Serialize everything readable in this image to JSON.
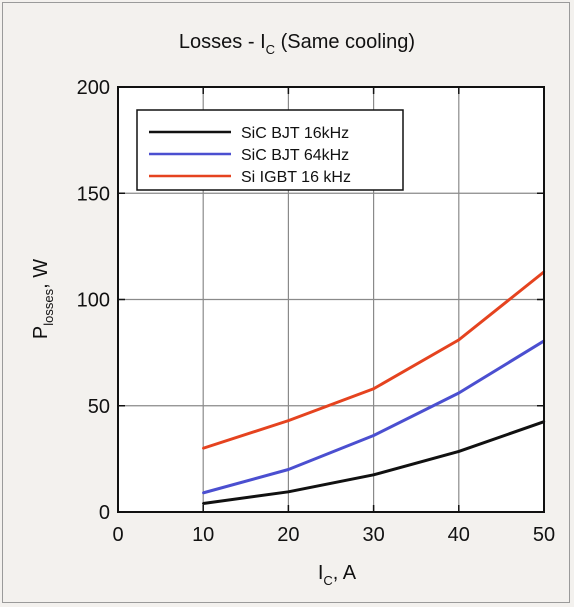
{
  "chart_data": {
    "type": "line",
    "title_main": "Losses - I",
    "title_sub": "C",
    "title_suffix": " (Same cooling)",
    "xlabel_main": "I",
    "xlabel_sub": "C",
    "xlabel_suffix": ", A",
    "ylabel_main": "P",
    "ylabel_sub": "losses",
    "ylabel_suffix": ", W",
    "xlim": [
      0,
      50
    ],
    "ylim": [
      0,
      200
    ],
    "xticks": [
      0,
      10,
      20,
      30,
      40,
      50
    ],
    "yticks": [
      0,
      50,
      100,
      150,
      200
    ],
    "grid": true,
    "legend_position": "top-left",
    "series": [
      {
        "name": "SiC BJT 16kHz",
        "color": "#111111",
        "x": [
          10,
          20,
          30,
          40,
          50
        ],
        "y": [
          4,
          9.5,
          17.5,
          28.5,
          42.5
        ]
      },
      {
        "name": "SiC BJT 64kHz",
        "color": "#4b4fd0",
        "x": [
          10,
          20,
          30,
          40,
          50
        ],
        "y": [
          9,
          20,
          36,
          56,
          80.5
        ]
      },
      {
        "name": "Si IGBT 16 kHz",
        "color": "#e5431f",
        "x": [
          10,
          20,
          30,
          40,
          50
        ],
        "y": [
          30,
          43,
          58,
          81,
          113
        ]
      }
    ]
  }
}
